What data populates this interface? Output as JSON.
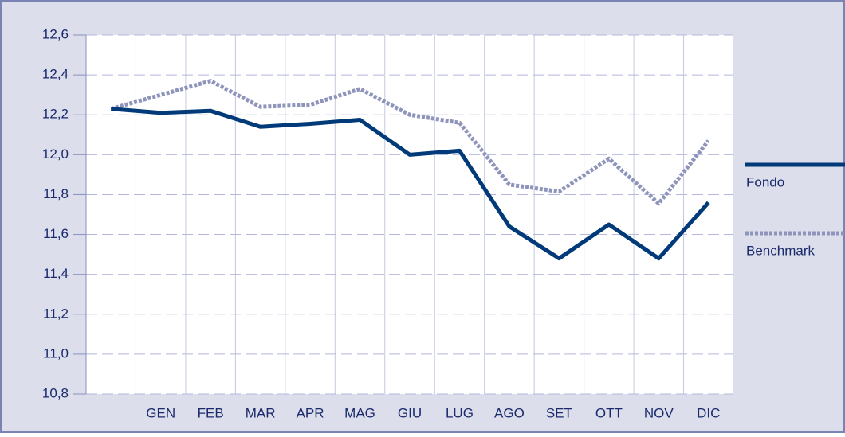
{
  "chart_data": {
    "type": "line",
    "categories": [
      null,
      "GEN",
      "FEB",
      "MAR",
      "APR",
      "MAG",
      "GIU",
      "LUG",
      "AGO",
      "SET",
      "OTT",
      "NOV",
      "DIC"
    ],
    "series": [
      {
        "name": "Fondo",
        "color": "#003a78",
        "style": "solid",
        "values": [
          12.23,
          12.21,
          12.22,
          12.14,
          12.155,
          12.175,
          12.0,
          12.02,
          11.64,
          11.48,
          11.65,
          11.48,
          11.76
        ]
      },
      {
        "name": "Benchmark",
        "color": "#8e94ba",
        "style": "dotted",
        "values": [
          12.23,
          12.3,
          12.37,
          12.24,
          12.25,
          12.33,
          12.2,
          12.16,
          11.85,
          11.815,
          11.98,
          11.755,
          12.07
        ]
      }
    ],
    "ylim": [
      10.8,
      12.6
    ],
    "yticks": [
      {
        "value": 10.8,
        "label": "10,8"
      },
      {
        "value": 11.0,
        "label": "11,0"
      },
      {
        "value": 11.2,
        "label": "11,2"
      },
      {
        "value": 11.4,
        "label": "11,4"
      },
      {
        "value": 11.6,
        "label": "11,6"
      },
      {
        "value": 11.8,
        "label": "11,8"
      },
      {
        "value": 12.0,
        "label": "12,0"
      },
      {
        "value": 12.2,
        "label": "12,2"
      },
      {
        "value": 12.4,
        "label": "12,4"
      },
      {
        "value": 12.6,
        "label": "12,6"
      }
    ],
    "grid": true,
    "legend": "right"
  }
}
